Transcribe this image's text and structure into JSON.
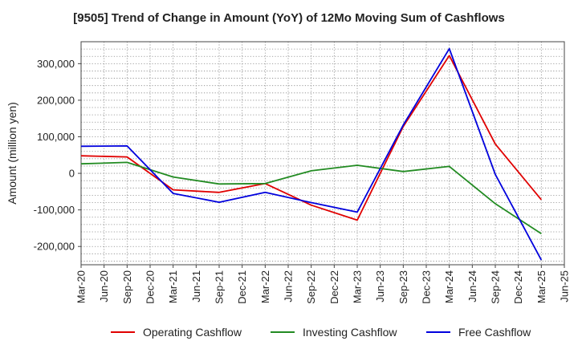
{
  "chart_data": {
    "type": "line",
    "title": "[9505]  Trend of Change in Amount (YoY) of 12Mo Moving Sum of Cashflows",
    "xlabel": "",
    "ylabel": "Amount (million yen)",
    "categories": [
      "Mar-20",
      "Jun-20",
      "Sep-20",
      "Dec-20",
      "Mar-21",
      "Jun-21",
      "Sep-21",
      "Dec-21",
      "Mar-22",
      "Jun-22",
      "Sep-22",
      "Dec-22",
      "Mar-23",
      "Jun-23",
      "Sep-23",
      "Dec-23",
      "Mar-24",
      "Jun-24",
      "Sep-24",
      "Dec-24",
      "Mar-25",
      "Jun-25"
    ],
    "ylim": [
      -250000,
      360000
    ],
    "yticks": [
      -200000,
      -100000,
      0,
      100000,
      200000,
      300000
    ],
    "ytick_labels": [
      "-200,000",
      "-100,000",
      "0",
      "100,000",
      "200,000",
      "300,000"
    ],
    "grid": true,
    "legend_position": "bottom",
    "series": [
      {
        "name": "Operating Cashflow",
        "color": "#e00000",
        "values": [
          48000,
          null,
          45000,
          null,
          -45000,
          null,
          -52000,
          null,
          -28000,
          null,
          -87000,
          null,
          -128000,
          null,
          128000,
          null,
          322000,
          null,
          80000,
          null,
          -72000,
          null
        ]
      },
      {
        "name": "Investing Cashflow",
        "color": "#228b22",
        "values": [
          26000,
          null,
          30000,
          null,
          -10000,
          null,
          -29000,
          null,
          -28000,
          null,
          7000,
          null,
          22000,
          null,
          5000,
          null,
          19000,
          null,
          -83000,
          null,
          -165000,
          null
        ]
      },
      {
        "name": "Free Cashflow",
        "color": "#0000dd",
        "values": [
          74000,
          null,
          75000,
          null,
          -55000,
          null,
          -79000,
          null,
          -52000,
          null,
          -80000,
          null,
          -106000,
          null,
          132000,
          null,
          341000,
          null,
          -3000,
          null,
          -237000,
          null
        ]
      }
    ]
  }
}
